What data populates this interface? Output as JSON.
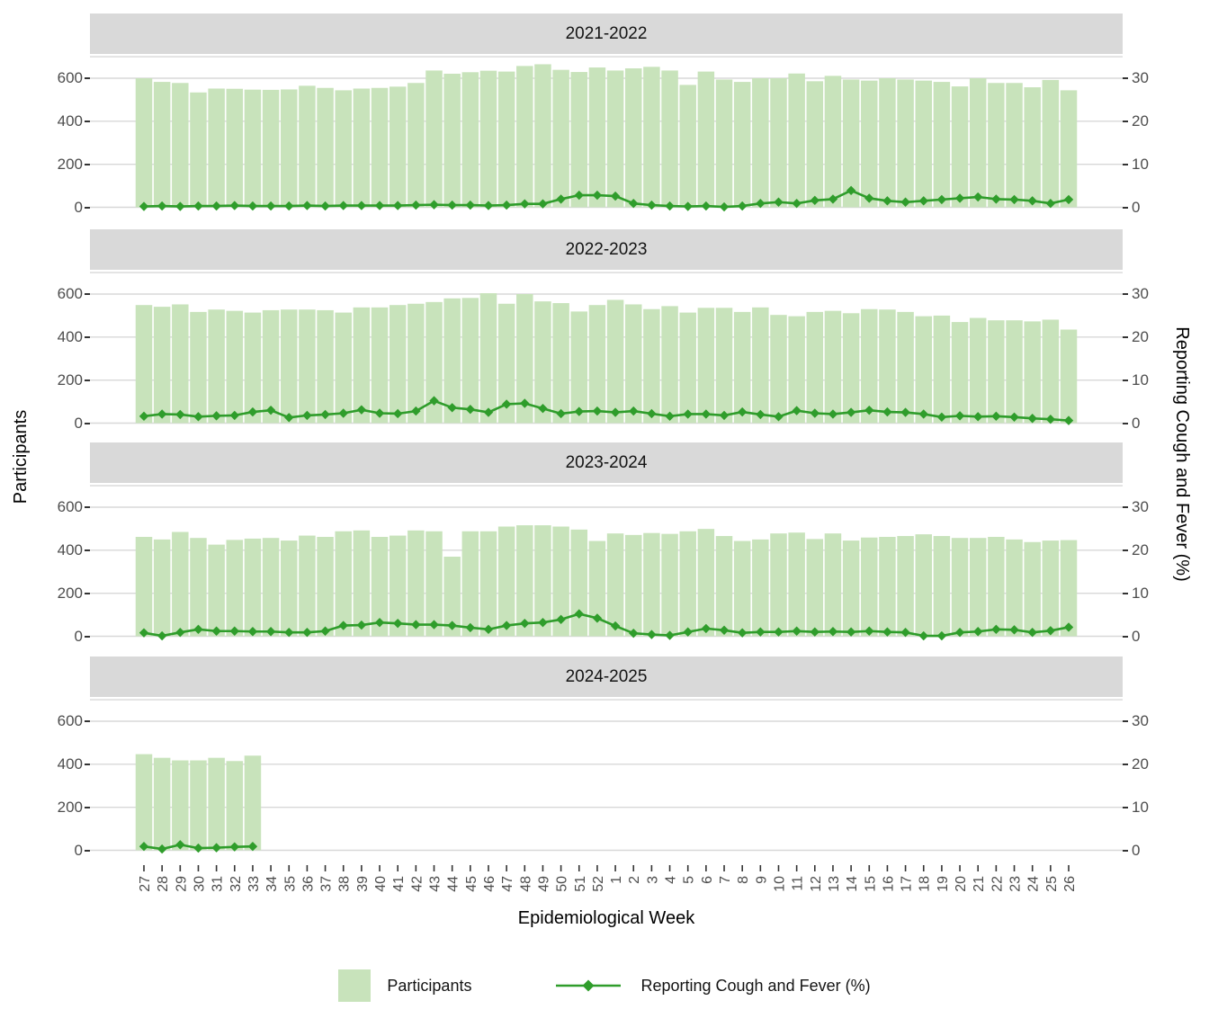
{
  "ui": {
    "x_axis_title": "Epidemiological Week",
    "y_left_axis_title": "Participants",
    "y_right_axis_title": "Reporting Cough and Fever (%)",
    "legend": {
      "bar_label": "Participants",
      "line_label": "Reporting Cough and Fever (%)"
    },
    "y_left_ticks": [
      0,
      200,
      400,
      600
    ],
    "y_right_ticks": [
      0,
      10,
      20,
      30
    ],
    "colors": {
      "bar_fill": "#c8e3bb",
      "line": "#2f9d2b",
      "grid": "#d8d8d8",
      "strip_bg": "#d9d9d9",
      "axis_text": "#4d4d4d",
      "tick_mark": "#333333"
    }
  },
  "chart_data": {
    "type": "bar",
    "subtype": "bar-plus-line-dual-axis",
    "title": "",
    "xlabel": "Epidemiological Week",
    "ylabel_left": "Participants",
    "ylabel_right": "Reporting Cough and Fever (%)",
    "ylim_left": [
      0,
      700
    ],
    "ylim_right": [
      0,
      35
    ],
    "grid": "horizontal-major",
    "legend_position": "bottom",
    "x_categories": [
      "27",
      "28",
      "29",
      "30",
      "31",
      "32",
      "33",
      "34",
      "35",
      "36",
      "37",
      "38",
      "39",
      "40",
      "41",
      "42",
      "43",
      "44",
      "45",
      "46",
      "47",
      "48",
      "49",
      "50",
      "51",
      "52",
      "1",
      "2",
      "3",
      "4",
      "5",
      "6",
      "7",
      "8",
      "9",
      "10",
      "11",
      "12",
      "13",
      "14",
      "15",
      "16",
      "17",
      "18",
      "19",
      "20",
      "21",
      "22",
      "23",
      "24",
      "25",
      "26"
    ],
    "facets": [
      {
        "season": "2021-2022",
        "participants": [
          600,
          583,
          578,
          534,
          552,
          551,
          547,
          546,
          548,
          565,
          555,
          544,
          552,
          555,
          561,
          578,
          636,
          621,
          628,
          635,
          631,
          657,
          665,
          639,
          629,
          650,
          636,
          646,
          653,
          636,
          569,
          631,
          594,
          583,
          600,
          600,
          622,
          586,
          611,
          594,
          589,
          600,
          594,
          589,
          583,
          562,
          600,
          578,
          578,
          558,
          592,
          544
        ],
        "pct_cough_fever": [
          0.2,
          0.3,
          0.2,
          0.3,
          0.3,
          0.4,
          0.3,
          0.3,
          0.3,
          0.4,
          0.3,
          0.4,
          0.4,
          0.4,
          0.4,
          0.5,
          0.6,
          0.5,
          0.5,
          0.4,
          0.5,
          0.8,
          0.8,
          1.9,
          2.8,
          2.8,
          2.6,
          0.9,
          0.5,
          0.3,
          0.2,
          0.3,
          0.1,
          0.3,
          0.9,
          1.2,
          0.9,
          1.6,
          1.9,
          3.9,
          2.1,
          1.5,
          1.2,
          1.5,
          1.8,
          2.1,
          2.4,
          1.9,
          1.8,
          1.5,
          0.9,
          1.8
        ]
      },
      {
        "season": "2022-2023",
        "participants": [
          549,
          541,
          552,
          517,
          528,
          522,
          514,
          525,
          528,
          528,
          525,
          514,
          538,
          538,
          549,
          555,
          563,
          580,
          582,
          604,
          555,
          600,
          566,
          558,
          519,
          549,
          573,
          552,
          530,
          544,
          514,
          536,
          536,
          517,
          538,
          503,
          497,
          517,
          522,
          511,
          530,
          528,
          517,
          497,
          500,
          470,
          489,
          478,
          478,
          473,
          481,
          435
        ],
        "pct_cough_fever": [
          1.6,
          2.1,
          2.0,
          1.5,
          1.7,
          1.8,
          2.6,
          3.0,
          1.3,
          1.8,
          2.0,
          2.3,
          3.1,
          2.3,
          2.2,
          2.8,
          5.2,
          3.6,
          3.2,
          2.5,
          4.4,
          4.6,
          3.4,
          2.2,
          2.7,
          2.8,
          2.5,
          2.8,
          2.2,
          1.6,
          2.1,
          2.1,
          1.8,
          2.6,
          2.0,
          1.5,
          2.9,
          2.3,
          2.1,
          2.5,
          3.0,
          2.6,
          2.5,
          2.1,
          1.4,
          1.7,
          1.5,
          1.6,
          1.4,
          1.1,
          0.9,
          0.6
        ]
      },
      {
        "season": "2023-2024",
        "participants": [
          462,
          450,
          485,
          457,
          426,
          448,
          454,
          457,
          445,
          468,
          462,
          488,
          492,
          462,
          468,
          492,
          488,
          370,
          488,
          488,
          510,
          516,
          516,
          510,
          496,
          443,
          478,
          471,
          480,
          476,
          488,
          499,
          466,
          443,
          450,
          478,
          482,
          452,
          478,
          445,
          459,
          462,
          466,
          474,
          466,
          457,
          457,
          462,
          450,
          438,
          445,
          447
        ],
        "pct_cough_fever": [
          0.8,
          0.1,
          0.9,
          1.6,
          1.2,
          1.2,
          1.1,
          1.1,
          0.9,
          0.9,
          1.2,
          2.5,
          2.6,
          3.2,
          3.0,
          2.7,
          2.7,
          2.5,
          2.0,
          1.6,
          2.5,
          3.0,
          3.2,
          3.9,
          5.2,
          4.2,
          2.4,
          0.7,
          0.4,
          0.2,
          1.0,
          1.8,
          1.4,
          0.8,
          1.0,
          1.0,
          1.2,
          1.0,
          1.1,
          1.0,
          1.2,
          1.0,
          0.9,
          0.1,
          0.1,
          0.9,
          1.1,
          1.6,
          1.5,
          0.9,
          1.3,
          2.1
        ]
      },
      {
        "season": "2024-2025",
        "participants": [
          447,
          430,
          418,
          418,
          430,
          415,
          440
        ],
        "pct_cough_fever": [
          0.9,
          0.3,
          1.3,
          0.5,
          0.6,
          0.8,
          0.9
        ]
      }
    ]
  }
}
